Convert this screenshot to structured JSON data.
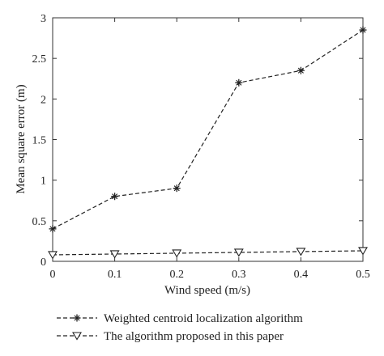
{
  "chart_data": {
    "type": "line",
    "x": [
      0,
      0.1,
      0.2,
      0.3,
      0.4,
      0.5
    ],
    "series": [
      {
        "name": "Weighted centroid localization algorithm",
        "values": [
          0.4,
          0.8,
          0.9,
          2.2,
          2.35,
          2.85
        ],
        "marker": "star",
        "line_style": "dashed",
        "color": "#222222"
      },
      {
        "name": "The algorithm proposed in this paper",
        "values": [
          0.08,
          0.09,
          0.1,
          0.11,
          0.12,
          0.13
        ],
        "marker": "triangle-down",
        "line_style": "dashed",
        "color": "#222222"
      }
    ],
    "title": "",
    "xlabel": "Wind speed (m/s)",
    "ylabel": "Mean square error (m)",
    "xlim": [
      0,
      0.5
    ],
    "ylim": [
      0,
      3
    ],
    "x_ticks": [
      "0",
      "0.1",
      "0.2",
      "0.3",
      "0.4",
      "0.5"
    ],
    "y_ticks": [
      "0",
      "0.5",
      "1",
      "1.5",
      "2",
      "2.5",
      "3"
    ],
    "grid": false,
    "legend_position": "bottom"
  }
}
